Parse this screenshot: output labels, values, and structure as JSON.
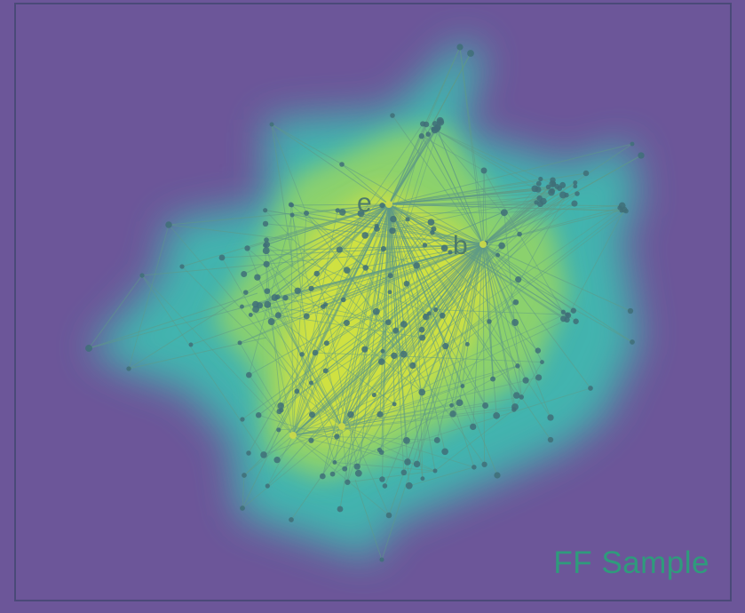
{
  "figure": {
    "caption": "FF Sample",
    "hub_labels": {
      "e": "e",
      "b": "b"
    }
  },
  "colors": {
    "background": "#6c5699",
    "frame": "#4a4a78",
    "heat_low": "#3fb9b0",
    "heat_mid": "#8fd36a",
    "heat_high": "#d7e33c",
    "node": "#3f6f78",
    "edge": "#5f9a86"
  }
}
